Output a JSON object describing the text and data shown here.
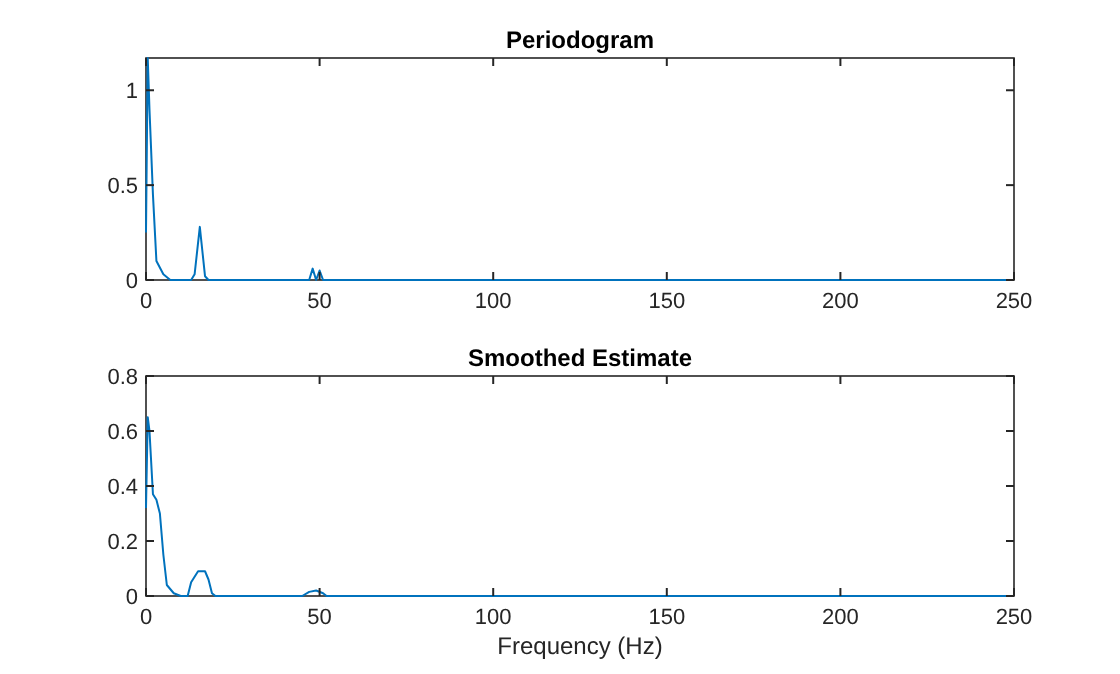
{
  "chart_data": [
    {
      "type": "line",
      "title": "Periodogram",
      "x": [
        0,
        0.5,
        1,
        2,
        3,
        5,
        7,
        13,
        14,
        15.5,
        17,
        18,
        47,
        48,
        49,
        50,
        51,
        52,
        250
      ],
      "series": [
        {
          "color": "#0072bd",
          "values": [
            0.25,
            1.17,
            0.9,
            0.45,
            0.1,
            0.03,
            0,
            0,
            0.03,
            0.28,
            0.02,
            0,
            0,
            0.06,
            0,
            0.05,
            0,
            0,
            0
          ]
        }
      ],
      "xlim": [
        0,
        250
      ],
      "ylim": [
        0,
        1.17
      ],
      "xticks": [
        0,
        50,
        100,
        150,
        200,
        250
      ],
      "yticks": [
        0,
        0.5,
        1
      ],
      "grid": false
    },
    {
      "type": "line",
      "title": "Smoothed Estimate",
      "xlabel": "Frequency (Hz)",
      "x": [
        0,
        0.5,
        1,
        2,
        3,
        4,
        5,
        6,
        8,
        10,
        12,
        13,
        15,
        17,
        18,
        19,
        20,
        45,
        47,
        49,
        51,
        52,
        250
      ],
      "series": [
        {
          "color": "#0072bd",
          "values": [
            0.32,
            0.65,
            0.6,
            0.37,
            0.35,
            0.3,
            0.15,
            0.04,
            0.01,
            0,
            0,
            0.05,
            0.09,
            0.09,
            0.06,
            0.01,
            0,
            0,
            0.015,
            0.02,
            0.01,
            0,
            0
          ]
        }
      ],
      "xlim": [
        0,
        250
      ],
      "ylim": [
        0,
        0.8
      ],
      "xticks": [
        0,
        50,
        100,
        150,
        200,
        250
      ],
      "yticks": [
        0,
        0.2,
        0.4,
        0.6,
        0.8
      ],
      "grid": false
    }
  ]
}
